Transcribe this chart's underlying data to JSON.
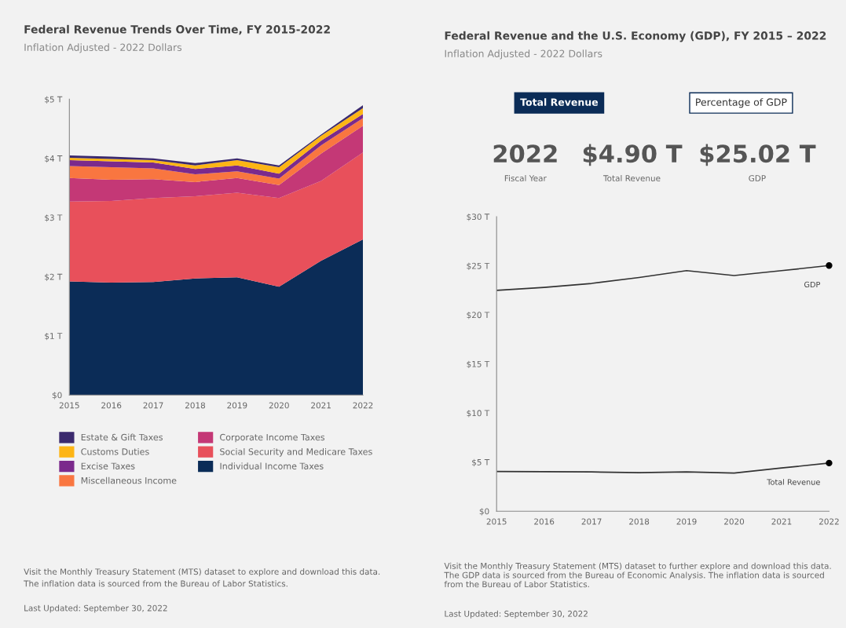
{
  "chart_data": [
    {
      "type": "area",
      "title": "Federal Revenue Trends Over Time, FY 2015-2022",
      "subtitle": "Inflation Adjusted - 2022 Dollars",
      "stacked": true,
      "x": [
        2015,
        2016,
        2017,
        2018,
        2019,
        2020,
        2021,
        2022
      ],
      "xlim": [
        2015,
        2022
      ],
      "xticks": [
        2015,
        2016,
        2017,
        2018,
        2019,
        2020,
        2021,
        2022
      ],
      "ylim": [
        0,
        5
      ],
      "yticks": [
        {
          "value": 0,
          "label": "$0"
        },
        {
          "value": 1,
          "label": "$1 T"
        },
        {
          "value": 2,
          "label": "$2 T"
        },
        {
          "value": 3,
          "label": "$3 T"
        },
        {
          "value": 4,
          "label": "$4 T"
        },
        {
          "value": 5,
          "label": "$5 T"
        }
      ],
      "grid": false,
      "legend": "bottom",
      "series": [
        {
          "name": "Individual Income Taxes",
          "color": "#0b2c57",
          "values": [
            1.92,
            1.9,
            1.91,
            1.97,
            1.99,
            1.83,
            2.27,
            2.63
          ]
        },
        {
          "name": "Social Security and Medicare Taxes",
          "color": "#e8505b",
          "values": [
            1.35,
            1.38,
            1.42,
            1.39,
            1.43,
            1.5,
            1.35,
            1.47
          ]
        },
        {
          "name": "Corporate Income Taxes",
          "color": "#c43876",
          "values": [
            0.4,
            0.36,
            0.32,
            0.24,
            0.25,
            0.22,
            0.46,
            0.45
          ]
        },
        {
          "name": "Miscellaneous Income",
          "color": "#f97640",
          "values": [
            0.2,
            0.21,
            0.18,
            0.13,
            0.11,
            0.11,
            0.14,
            0.13
          ]
        },
        {
          "name": "Excise Taxes",
          "color": "#7b2a8c",
          "values": [
            0.1,
            0.1,
            0.1,
            0.09,
            0.1,
            0.08,
            0.08,
            0.07
          ]
        },
        {
          "name": "Customs Duties",
          "color": "#fdb515",
          "values": [
            0.04,
            0.04,
            0.04,
            0.06,
            0.09,
            0.11,
            0.08,
            0.1
          ]
        },
        {
          "name": "Estate & Gift Taxes",
          "color": "#3b2a6e",
          "values": [
            0.04,
            0.04,
            0.03,
            0.04,
            0.03,
            0.03,
            0.02,
            0.05
          ]
        }
      ],
      "annotations": [
        "Visit the Monthly Treasury Statement (MTS) dataset to explore and download this data.",
        "The inflation data is sourced from the Bureau of Labor Statistics.",
        "Last Updated: September 30, 2022"
      ]
    },
    {
      "type": "line",
      "title": "Federal Revenue and the U.S. Economy (GDP), FY 2015 – 2022",
      "subtitle": "Inflation Adjusted - 2022 Dollars",
      "x": [
        2015,
        2016,
        2017,
        2018,
        2019,
        2020,
        2021,
        2022
      ],
      "xlim": [
        2015,
        2022
      ],
      "xticks": [
        2015,
        2016,
        2017,
        2018,
        2019,
        2020,
        2021,
        2022
      ],
      "ylim": [
        0,
        30
      ],
      "yticks": [
        {
          "value": 0,
          "label": "$0"
        },
        {
          "value": 5,
          "label": "$5 T"
        },
        {
          "value": 10,
          "label": "$10 T"
        },
        {
          "value": 15,
          "label": "$15 T"
        },
        {
          "value": 20,
          "label": "$20 T"
        },
        {
          "value": 25,
          "label": "$25 T"
        },
        {
          "value": 30,
          "label": "$30 T"
        }
      ],
      "grid": false,
      "legend": false,
      "series": [
        {
          "name": "GDP",
          "color": "#333333",
          "values": [
            22.5,
            22.8,
            23.2,
            23.8,
            24.5,
            24.0,
            24.5,
            25.02
          ]
        },
        {
          "name": "Total Revenue",
          "color": "#333333",
          "values": [
            4.05,
            4.03,
            4.0,
            3.92,
            4.0,
            3.88,
            4.4,
            4.9
          ]
        }
      ],
      "annotations": [
        "Total Revenue",
        "Percentage of GDP",
        "2022",
        "Fiscal Year",
        "$4.90 T",
        "Total Revenue",
        "$25.02 T",
        "GDP",
        "Visit the Monthly Treasury Statement (MTS) dataset to further explore and download this data. The GDP data is sourced from the Bureau of Economic Analysis. The inflation data is sourced from the Bureau of Labor Statistics.",
        "Last Updated: September 30, 2022"
      ]
    }
  ]
}
